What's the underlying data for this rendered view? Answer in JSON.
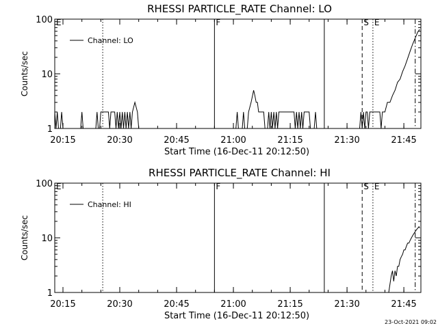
{
  "footer": {
    "timestamp": "23-Oct-2021 09:02"
  },
  "colors": {
    "background": "#ffffff",
    "foreground": "#000000"
  },
  "chart_data": [
    {
      "type": "line",
      "title": "RHESSI PARTICLE_RATE Channel: LO",
      "xlabel": "Start Time (16-Dec-11 20:12:50)",
      "ylabel": "Counts/sec",
      "yscale": "log",
      "xlim": [
        "20:12:50",
        "21:49:30"
      ],
      "ylim": [
        1,
        100
      ],
      "x_ticks": [
        "20:15",
        "20:30",
        "20:45",
        "21:00",
        "21:15",
        "21:30",
        "21:45"
      ],
      "y_ticks": [
        "1",
        "10",
        "100"
      ],
      "legend": {
        "position": "top-left",
        "entries": [
          "Channel: LO"
        ]
      },
      "markers": [
        {
          "time": "20:12:50",
          "label": "E",
          "style": "none"
        },
        {
          "time": "20:25:30",
          "label": "",
          "style": "dotted"
        },
        {
          "time": "20:55:00",
          "label": "F",
          "style": "solid"
        },
        {
          "time": "21:24:00",
          "label": "",
          "style": "solid"
        },
        {
          "time": "21:34:00",
          "label": "S",
          "style": "dashed"
        },
        {
          "time": "21:36:50",
          "label": "E",
          "style": "dotted"
        },
        {
          "time": "21:48:00",
          "label": "",
          "style": "dash-dot"
        }
      ],
      "series": [
        {
          "name": "Channel: LO",
          "points": [
            [
              "20:12:50",
              2
            ],
            [
              "20:13:10",
              1
            ],
            [
              "20:13:30",
              2
            ],
            [
              "20:13:50",
              1
            ],
            [
              "20:14:20",
              1
            ],
            [
              "20:14:40",
              2
            ],
            [
              "20:15:00",
              1
            ],
            [
              "20:19:40",
              1
            ],
            [
              "20:20:00",
              2
            ],
            [
              "20:20:20",
              1
            ],
            [
              "20:23:40",
              1
            ],
            [
              "20:24:00",
              2
            ],
            [
              "20:24:20",
              1
            ],
            [
              "20:24:40",
              1
            ],
            [
              "20:25:00",
              2
            ],
            [
              "20:27:00",
              2
            ],
            [
              "20:27:20",
              1
            ],
            [
              "20:27:40",
              2
            ],
            [
              "20:28:40",
              2
            ],
            [
              "20:29:00",
              1
            ],
            [
              "20:29:20",
              2
            ],
            [
              "20:29:40",
              1
            ],
            [
              "20:30:00",
              2
            ],
            [
              "20:30:20",
              1
            ],
            [
              "20:30:40",
              2
            ],
            [
              "20:31:00",
              1
            ],
            [
              "20:31:20",
              2
            ],
            [
              "20:31:40",
              1
            ],
            [
              "20:32:00",
              2
            ],
            [
              "20:32:20",
              1
            ],
            [
              "20:32:40",
              2
            ],
            [
              "20:33:00",
              1
            ],
            [
              "20:33:20",
              2
            ],
            [
              "20:34:00",
              3
            ],
            [
              "20:34:40",
              2
            ],
            [
              "20:35:00",
              1
            ],
            [
              "21:00:40",
              1
            ],
            [
              "21:01:00",
              2
            ],
            [
              "21:01:20",
              1
            ],
            [
              "21:02:20",
              1
            ],
            [
              "21:02:40",
              2
            ],
            [
              "21:03:00",
              1
            ],
            [
              "21:03:40",
              1
            ],
            [
              "21:04:00",
              2
            ],
            [
              "21:04:40",
              3
            ],
            [
              "21:05:20",
              5
            ],
            [
              "21:05:40",
              4
            ],
            [
              "21:06:00",
              3
            ],
            [
              "21:06:20",
              3
            ],
            [
              "21:06:40",
              2
            ],
            [
              "21:08:00",
              2
            ],
            [
              "21:08:20",
              1
            ],
            [
              "21:09:00",
              1
            ],
            [
              "21:09:20",
              2
            ],
            [
              "21:09:40",
              1
            ],
            [
              "21:10:00",
              2
            ],
            [
              "21:10:20",
              1
            ],
            [
              "21:10:40",
              2
            ],
            [
              "21:11:00",
              1
            ],
            [
              "21:11:20",
              2
            ],
            [
              "21:11:40",
              1
            ],
            [
              "21:12:00",
              2
            ],
            [
              "21:16:00",
              2
            ],
            [
              "21:16:20",
              1
            ],
            [
              "21:16:40",
              2
            ],
            [
              "21:17:00",
              1
            ],
            [
              "21:17:20",
              2
            ],
            [
              "21:17:40",
              1
            ],
            [
              "21:18:00",
              2
            ],
            [
              "21:18:20",
              1
            ],
            [
              "21:18:40",
              2
            ],
            [
              "21:20:00",
              2
            ],
            [
              "21:20:20",
              1
            ],
            [
              "21:21:20",
              1
            ],
            [
              "21:21:40",
              2
            ],
            [
              "21:22:00",
              1
            ],
            [
              "21:33:20",
              1
            ],
            [
              "21:33:40",
              2
            ],
            [
              "21:34:00",
              1
            ],
            [
              "21:34:20",
              2
            ],
            [
              "21:34:40",
              1
            ],
            [
              "21:35:00",
              2
            ],
            [
              "21:35:20",
              2
            ],
            [
              "21:35:40",
              1
            ],
            [
              "21:36:00",
              2
            ],
            [
              "21:38:40",
              2
            ],
            [
              "21:39:00",
              1
            ],
            [
              "21:39:20",
              2
            ],
            [
              "21:40:00",
              2
            ],
            [
              "21:40:40",
              3
            ],
            [
              "21:41:20",
              3
            ],
            [
              "21:42:00",
              4
            ],
            [
              "21:42:40",
              5
            ],
            [
              "21:43:20",
              7
            ],
            [
              "21:44:00",
              8
            ],
            [
              "21:44:40",
              11
            ],
            [
              "21:45:20",
              14
            ],
            [
              "21:46:00",
              19
            ],
            [
              "21:46:40",
              26
            ],
            [
              "21:47:20",
              35
            ],
            [
              "21:48:00",
              45
            ],
            [
              "21:48:40",
              58
            ],
            [
              "21:49:10",
              65
            ]
          ]
        }
      ]
    },
    {
      "type": "line",
      "title": "RHESSI PARTICLE_RATE Channel: HI",
      "xlabel": "Start Time (16-Dec-11 20:12:50)",
      "ylabel": "Counts/sec",
      "yscale": "log",
      "xlim": [
        "20:12:50",
        "21:49:30"
      ],
      "ylim": [
        1,
        100
      ],
      "x_ticks": [
        "20:15",
        "20:30",
        "20:45",
        "21:00",
        "21:15",
        "21:30",
        "21:45"
      ],
      "y_ticks": [
        "1",
        "10",
        "100"
      ],
      "legend": {
        "position": "top-left",
        "entries": [
          "Channel: HI"
        ]
      },
      "markers": [
        {
          "time": "20:12:50",
          "label": "E",
          "style": "none"
        },
        {
          "time": "20:25:30",
          "label": "",
          "style": "dotted"
        },
        {
          "time": "20:55:00",
          "label": "F",
          "style": "solid"
        },
        {
          "time": "21:24:00",
          "label": "",
          "style": "solid"
        },
        {
          "time": "21:34:00",
          "label": "S",
          "style": "dashed"
        },
        {
          "time": "21:36:50",
          "label": "E",
          "style": "dotted"
        },
        {
          "time": "21:48:00",
          "label": "",
          "style": "dash-dot"
        }
      ],
      "series": [
        {
          "name": "Channel: HI",
          "points": [
            [
              "21:41:00",
              1
            ],
            [
              "21:41:40",
              2
            ],
            [
              "21:42:00",
              2.5
            ],
            [
              "21:42:20",
              1.6
            ],
            [
              "21:42:40",
              2.5
            ],
            [
              "21:43:00",
              2
            ],
            [
              "21:43:20",
              3
            ],
            [
              "21:43:40",
              3
            ],
            [
              "21:44:00",
              4
            ],
            [
              "21:44:20",
              4.5
            ],
            [
              "21:44:40",
              5
            ],
            [
              "21:45:00",
              6
            ],
            [
              "21:45:20",
              6
            ],
            [
              "21:45:40",
              7
            ],
            [
              "21:46:00",
              8
            ],
            [
              "21:46:20",
              8
            ],
            [
              "21:46:40",
              9
            ],
            [
              "21:47:00",
              10
            ],
            [
              "21:47:20",
              11
            ],
            [
              "21:47:40",
              12
            ],
            [
              "21:48:00",
              13
            ],
            [
              "21:48:20",
              14
            ],
            [
              "21:48:40",
              15
            ],
            [
              "21:49:00",
              16
            ],
            [
              "21:49:10",
              15
            ]
          ]
        }
      ]
    }
  ]
}
